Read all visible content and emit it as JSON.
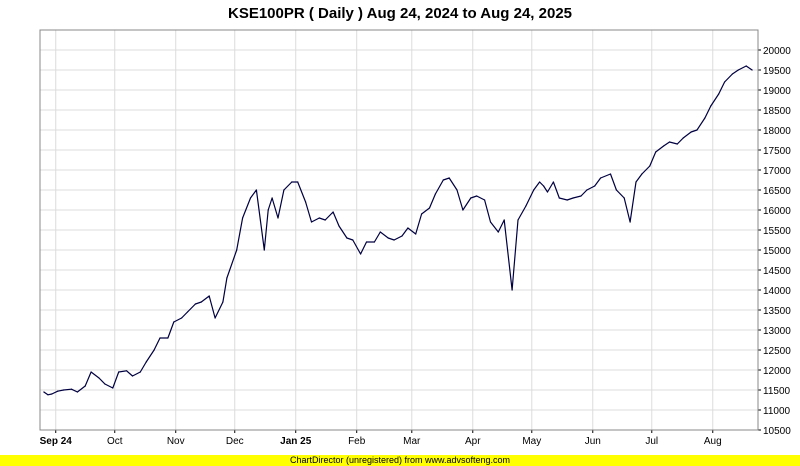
{
  "chart_data": {
    "type": "line",
    "title": "KSE100PR ( Daily ) Aug 24, 2024 to Aug 24, 2025",
    "xlabel": "",
    "ylabel": "",
    "ylim": [
      10500,
      20500
    ],
    "y_ticks": [
      10500,
      11000,
      11500,
      12000,
      12500,
      13000,
      13500,
      14000,
      14500,
      15000,
      15500,
      16000,
      16500,
      17000,
      17500,
      18000,
      18500,
      19000,
      19500,
      20000
    ],
    "x_range": [
      "2024-08-24",
      "2025-08-24"
    ],
    "x_ticks": [
      {
        "date": "2024-09-01",
        "label": "Sep 24",
        "bold": true
      },
      {
        "date": "2024-10-01",
        "label": "Oct",
        "bold": false
      },
      {
        "date": "2024-11-01",
        "label": "Nov",
        "bold": false
      },
      {
        "date": "2024-12-01",
        "label": "Dec",
        "bold": false
      },
      {
        "date": "2025-01-01",
        "label": "Jan 25",
        "bold": true
      },
      {
        "date": "2025-02-01",
        "label": "Feb",
        "bold": false
      },
      {
        "date": "2025-03-01",
        "label": "Mar",
        "bold": false
      },
      {
        "date": "2025-04-01",
        "label": "Apr",
        "bold": false
      },
      {
        "date": "2025-05-01",
        "label": "May",
        "bold": false
      },
      {
        "date": "2025-06-01",
        "label": "Jun",
        "bold": false
      },
      {
        "date": "2025-07-01",
        "label": "Jul",
        "bold": false
      },
      {
        "date": "2025-08-01",
        "label": "Aug",
        "bold": false
      }
    ],
    "grid": true,
    "line_color": "#000040",
    "series": [
      {
        "x": [
          "2024-08-26",
          "2024-08-28",
          "2024-08-30",
          "2024-09-02",
          "2024-09-05",
          "2024-09-09",
          "2024-09-12",
          "2024-09-16",
          "2024-09-19",
          "2024-09-23",
          "2024-09-26",
          "2024-09-30",
          "2024-10-03",
          "2024-10-07",
          "2024-10-10",
          "2024-10-14",
          "2024-10-17",
          "2024-10-21",
          "2024-10-24",
          "2024-10-28",
          "2024-10-31",
          "2024-11-04",
          "2024-11-07",
          "2024-11-11",
          "2024-11-14",
          "2024-11-18",
          "2024-11-21",
          "2024-11-25",
          "2024-11-27",
          "2024-12-02",
          "2024-12-05",
          "2024-12-09",
          "2024-12-12",
          "2024-12-16",
          "2024-12-18",
          "2024-12-20",
          "2024-12-23",
          "2024-12-26",
          "2024-12-30",
          "2025-01-02",
          "2025-01-06",
          "2025-01-09",
          "2025-01-13",
          "2025-01-16",
          "2025-01-20",
          "2025-01-23",
          "2025-01-27",
          "2025-01-30",
          "2025-02-03",
          "2025-02-06",
          "2025-02-10",
          "2025-02-13",
          "2025-02-17",
          "2025-02-20",
          "2025-02-24",
          "2025-02-27",
          "2025-03-03",
          "2025-03-06",
          "2025-03-10",
          "2025-03-13",
          "2025-03-17",
          "2025-03-20",
          "2025-03-24",
          "2025-03-27",
          "2025-03-31",
          "2025-04-03",
          "2025-04-07",
          "2025-04-10",
          "2025-04-14",
          "2025-04-17",
          "2025-04-21",
          "2025-04-24",
          "2025-04-28",
          "2025-05-02",
          "2025-05-05",
          "2025-05-07",
          "2025-05-09",
          "2025-05-12",
          "2025-05-15",
          "2025-05-19",
          "2025-05-22",
          "2025-05-26",
          "2025-05-29",
          "2025-06-02",
          "2025-06-05",
          "2025-06-10",
          "2025-06-13",
          "2025-06-17",
          "2025-06-20",
          "2025-06-23",
          "2025-06-26",
          "2025-06-30",
          "2025-07-03",
          "2025-07-07",
          "2025-07-10",
          "2025-07-14",
          "2025-07-17",
          "2025-07-21",
          "2025-07-24",
          "2025-07-28",
          "2025-07-31",
          "2025-08-04",
          "2025-08-07",
          "2025-08-11",
          "2025-08-14",
          "2025-08-18",
          "2025-08-21"
        ],
        "values": [
          11450,
          11380,
          11400,
          11470,
          11500,
          11520,
          11450,
          11600,
          11950,
          11800,
          11650,
          11550,
          11950,
          11980,
          11850,
          11950,
          12200,
          12500,
          12800,
          12800,
          13200,
          13300,
          13450,
          13650,
          13700,
          13850,
          13300,
          13700,
          14300,
          15000,
          15800,
          16300,
          16500,
          15000,
          16000,
          16300,
          15800,
          16500,
          16700,
          16700,
          16200,
          15700,
          15800,
          15750,
          15950,
          15600,
          15300,
          15250,
          14900,
          15200,
          15200,
          15450,
          15300,
          15250,
          15350,
          15550,
          15400,
          15900,
          16050,
          16400,
          16750,
          16800,
          16500,
          16000,
          16300,
          16350,
          16250,
          15700,
          15450,
          15750,
          14000,
          15750,
          16100,
          16500,
          16700,
          16600,
          16450,
          16700,
          16300,
          16250,
          16300,
          16350,
          16500,
          16600,
          16800,
          16900,
          16500,
          16300,
          15700,
          16700,
          16900,
          17100,
          17450,
          17600,
          17700,
          17650,
          17800,
          17950,
          18000,
          18300,
          18600,
          18900,
          19200,
          19400,
          19500,
          19600,
          19500
        ]
      }
    ]
  },
  "footer": {
    "text": "ChartDirector (unregistered) from www.advsofteng.com",
    "background": "#ffff00"
  }
}
